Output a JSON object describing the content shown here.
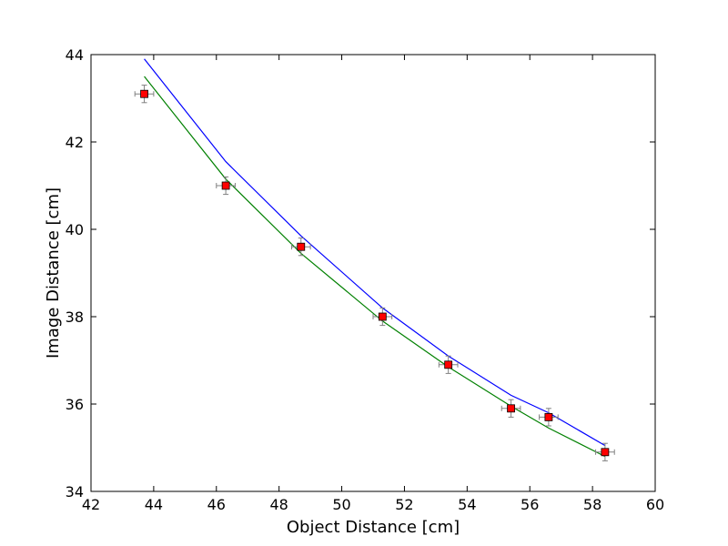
{
  "chart_data": {
    "type": "scatter",
    "title": "",
    "xlabel": "Object Distance [cm]",
    "ylabel": "Image Distance [cm]",
    "xlim": [
      42,
      60
    ],
    "ylim": [
      34,
      44
    ],
    "x_ticks": [
      42,
      44,
      46,
      48,
      50,
      52,
      54,
      56,
      58,
      60
    ],
    "y_ticks": [
      34,
      36,
      38,
      40,
      42,
      44
    ],
    "grid": false,
    "legend": "none",
    "measurements": {
      "x": [
        43.7,
        46.3,
        48.7,
        51.3,
        53.4,
        55.4,
        56.6,
        58.4
      ],
      "y": [
        43.1,
        41.0,
        39.6,
        38.0,
        36.9,
        35.9,
        35.7,
        34.9
      ],
      "x_err": [
        0.3,
        0.3,
        0.3,
        0.3,
        0.3,
        0.3,
        0.3,
        0.3
      ],
      "y_err": [
        0.2,
        0.2,
        0.2,
        0.2,
        0.2,
        0.2,
        0.2,
        0.2
      ],
      "marker": "square",
      "color": "#ff0000",
      "errorbar_color": "#808080"
    },
    "series": [
      {
        "color": "#0000ff",
        "x": [
          43.7,
          46.3,
          48.7,
          51.3,
          53.4,
          55.4,
          56.6,
          58.4
        ],
        "y": [
          43.9,
          41.55,
          39.85,
          38.2,
          37.1,
          36.2,
          35.8,
          35.05
        ]
      },
      {
        "color": "#008000",
        "x": [
          43.7,
          46.3,
          48.7,
          51.3,
          53.4,
          55.4,
          56.6,
          58.4
        ],
        "y": [
          43.5,
          41.15,
          39.45,
          37.9,
          36.85,
          35.95,
          35.45,
          34.8
        ]
      }
    ]
  }
}
